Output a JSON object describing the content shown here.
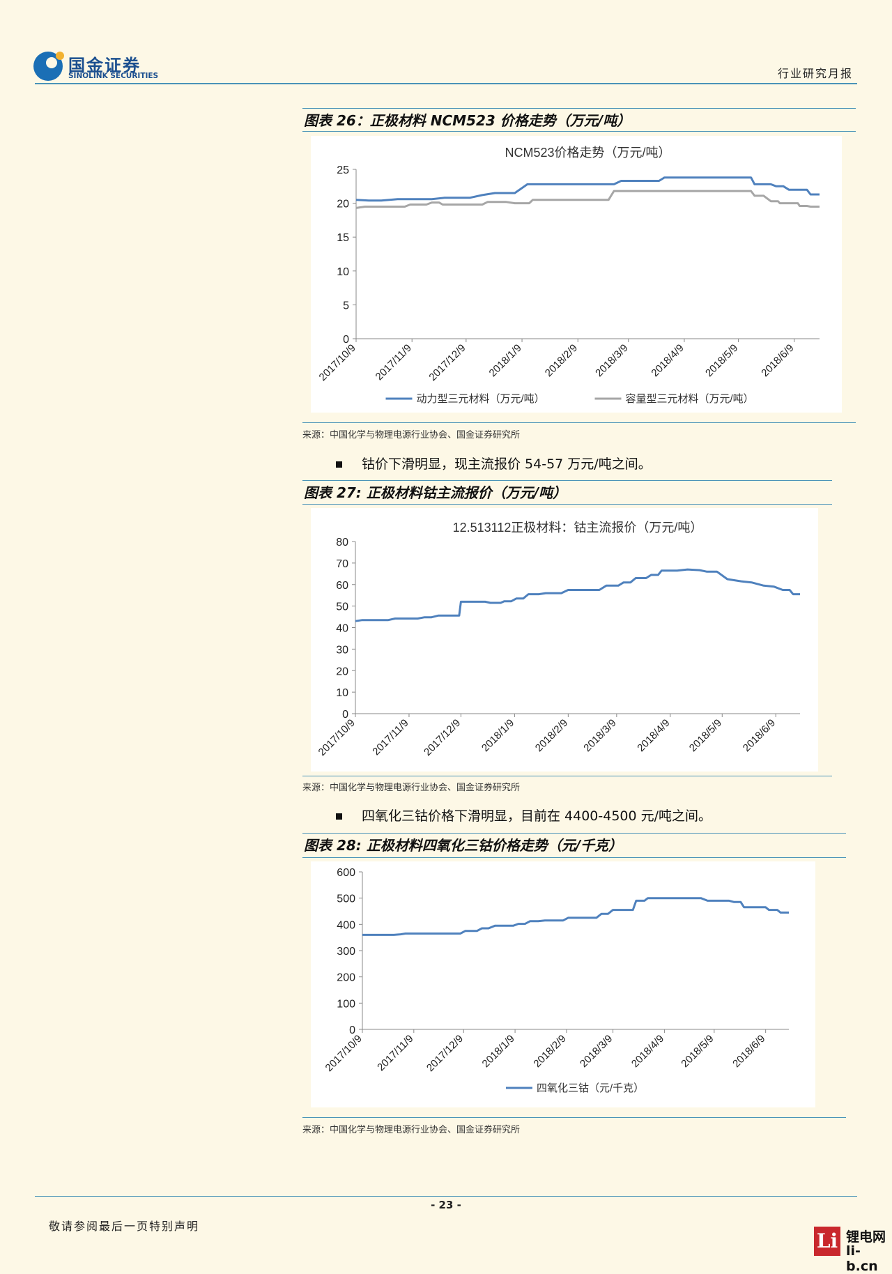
{
  "header": {
    "logo_cn": "国金证券",
    "logo_en": "SINOLINK SECURITIES",
    "report_type": "行业研究月报"
  },
  "figures": [
    {
      "caption": "图表 26：正极材料 NCM523 价格走势（万元/吨）",
      "source": "来源：中国化学与物理电源行业协会、国金证券研究所"
    },
    {
      "caption": "图表 27: 正极材料钴主流报价（万元/吨）",
      "source": "来源：中国化学与物理电源行业协会、国金证券研究所"
    },
    {
      "caption": "图表 28: 正极材料四氧化三钴价格走势（元/千克）",
      "source": "来源：中国化学与物理电源行业协会、国金证券研究所"
    }
  ],
  "bullets": [
    "钴价下滑明显，现主流报价 54-57 万元/吨之间。",
    "四氧化三钴价格下滑明显，目前在 4400-4500 元/吨之间。"
  ],
  "footer": {
    "page_number": "- 23 -",
    "note": "敬请参阅最后一页特别声明",
    "watermark_cn": "锂电网",
    "watermark_en": "li-b.cn",
    "watermark_logo": "Li"
  },
  "colors": {
    "series_blue": "#4f81bd",
    "series_gray": "#a6a6a6",
    "rule_blue": "#4a93b8"
  },
  "chart_data": [
    {
      "type": "line",
      "title": "NCM523价格走势（万元/吨）",
      "xlabel": "",
      "ylabel": "",
      "x_ticks": [
        "2017/10/9",
        "2017/11/9",
        "2017/12/9",
        "2018/1/9",
        "2018/2/9",
        "2018/3/9",
        "2018/4/9",
        "2018/5/9",
        "2018/6/9"
      ],
      "x_range": [
        "2017/10/9",
        "2018/6/23"
      ],
      "ylim": [
        0,
        25
      ],
      "yticks": [
        0,
        5,
        10,
        15,
        20,
        25
      ],
      "grid": false,
      "legend_position": "bottom",
      "series": [
        {
          "name": "动力型三元材料（万元/吨）",
          "points": [
            [
              "2017/10/9",
              20.5
            ],
            [
              "2017/10/16",
              20.4
            ],
            [
              "2017/10/23",
              20.4
            ],
            [
              "2017/11/1",
              20.6
            ],
            [
              "2017/11/20",
              20.6
            ],
            [
              "2017/11/27",
              20.8
            ],
            [
              "2017/12/11",
              20.8
            ],
            [
              "2017/12/18",
              21.2
            ],
            [
              "2017/12/25",
              21.5
            ],
            [
              "2018/1/5",
              21.5
            ],
            [
              "2018/1/12",
              22.8
            ],
            [
              "2018/3/1",
              22.8
            ],
            [
              "2018/3/5",
              23.3
            ],
            [
              "2018/3/26",
              23.3
            ],
            [
              "2018/3/29",
              23.8
            ],
            [
              "2018/5/16",
              23.8
            ],
            [
              "2018/5/18",
              22.8
            ],
            [
              "2018/5/27",
              22.8
            ],
            [
              "2018/5/30",
              22.5
            ],
            [
              "2018/6/3",
              22.5
            ],
            [
              "2018/6/6",
              22.0
            ],
            [
              "2018/6/16",
              22.0
            ],
            [
              "2018/6/18",
              21.3
            ],
            [
              "2018/6/23",
              21.3
            ]
          ]
        },
        {
          "name": "容量型三元材料（万元/吨）",
          "points": [
            [
              "2017/10/9",
              19.3
            ],
            [
              "2017/10/14",
              19.5
            ],
            [
              "2017/11/5",
              19.5
            ],
            [
              "2017/11/8",
              19.8
            ],
            [
              "2017/11/17",
              19.8
            ],
            [
              "2017/11/20",
              20.1
            ],
            [
              "2017/11/24",
              20.1
            ],
            [
              "2017/11/26",
              19.8
            ],
            [
              "2017/12/18",
              19.8
            ],
            [
              "2017/12/21",
              20.2
            ],
            [
              "2017/12/31",
              20.2
            ],
            [
              "2018/1/5",
              20.0
            ],
            [
              "2018/1/13",
              20.0
            ],
            [
              "2018/1/15",
              20.5
            ],
            [
              "2018/2/26",
              20.5
            ],
            [
              "2018/3/1",
              21.8
            ],
            [
              "2018/5/16",
              21.8
            ],
            [
              "2018/5/18",
              21.1
            ],
            [
              "2018/5/23",
              21.1
            ],
            [
              "2018/5/27",
              20.3
            ],
            [
              "2018/5/31",
              20.3
            ],
            [
              "2018/6/1",
              20.0
            ],
            [
              "2018/6/11",
              20.0
            ],
            [
              "2018/6/12",
              19.6
            ],
            [
              "2018/6/16",
              19.6
            ],
            [
              "2018/6/18",
              19.5
            ],
            [
              "2018/6/23",
              19.5
            ]
          ]
        }
      ]
    },
    {
      "type": "line",
      "title": "12.513112正极材料：钴主流报价（万元/吨）",
      "xlabel": "",
      "ylabel": "",
      "x_ticks": [
        "2017/10/9",
        "2017/11/9",
        "2017/12/9",
        "2018/1/9",
        "2018/2/9",
        "2018/3/9",
        "2018/4/9",
        "2018/5/9",
        "2018/6/9"
      ],
      "x_range": [
        "2017/10/9",
        "2018/6/23"
      ],
      "ylim": [
        0,
        80
      ],
      "yticks": [
        0,
        10,
        20,
        30,
        40,
        50,
        60,
        70,
        80
      ],
      "grid": false,
      "legend_position": "none",
      "series": [
        {
          "name": "",
          "points": [
            [
              "2017/10/9",
              43
            ],
            [
              "2017/10/13",
              43.5
            ],
            [
              "2017/10/28",
              43.5
            ],
            [
              "2017/11/1",
              44.2
            ],
            [
              "2017/11/14",
              44.2
            ],
            [
              "2017/11/18",
              44.8
            ],
            [
              "2017/11/22",
              44.8
            ],
            [
              "2017/11/26",
              45.6
            ],
            [
              "2017/12/8",
              45.6
            ],
            [
              "2017/12/9",
              52
            ],
            [
              "2017/12/23",
              52
            ],
            [
              "2017/12/26",
              51.5
            ],
            [
              "2018/1/1",
              51.5
            ],
            [
              "2018/1/3",
              52.2
            ],
            [
              "2018/1/7",
              52.2
            ],
            [
              "2018/1/10",
              53.5
            ],
            [
              "2018/1/14",
              53.5
            ],
            [
              "2018/1/17",
              55.5
            ],
            [
              "2018/1/23",
              55.5
            ],
            [
              "2018/1/27",
              56
            ],
            [
              "2018/2/5",
              56
            ],
            [
              "2018/2/9",
              57.5
            ],
            [
              "2018/2/27",
              57.5
            ],
            [
              "2018/3/3",
              59.5
            ],
            [
              "2018/3/10",
              59.5
            ],
            [
              "2018/3/13",
              61
            ],
            [
              "2018/3/17",
              61
            ],
            [
              "2018/3/20",
              63
            ],
            [
              "2018/3/26",
              63
            ],
            [
              "2018/3/29",
              64.5
            ],
            [
              "2018/4/2",
              64.5
            ],
            [
              "2018/4/4",
              66.5
            ],
            [
              "2018/4/13",
              66.5
            ],
            [
              "2018/4/19",
              67
            ],
            [
              "2018/4/26",
              66.7
            ],
            [
              "2018/4/30",
              66
            ],
            [
              "2018/5/6",
              66
            ],
            [
              "2018/5/12",
              62.5
            ],
            [
              "2018/5/20",
              61.5
            ],
            [
              "2018/5/26",
              61
            ],
            [
              "2018/6/2",
              59.5
            ],
            [
              "2018/6/8",
              59
            ],
            [
              "2018/6/13",
              57.5
            ],
            [
              "2018/6/17",
              57.5
            ],
            [
              "2018/6/19",
              55.5
            ],
            [
              "2018/6/23",
              55.5
            ]
          ]
        }
      ]
    },
    {
      "type": "line",
      "title": "",
      "xlabel": "",
      "ylabel": "",
      "x_ticks": [
        "2017/10/9",
        "2017/11/9",
        "2017/12/9",
        "2018/1/9",
        "2018/2/9",
        "2018/3/9",
        "2018/4/9",
        "2018/5/9",
        "2018/6/9"
      ],
      "x_range": [
        "2017/10/9",
        "2018/6/23"
      ],
      "ylim": [
        0,
        600
      ],
      "yticks": [
        0,
        100,
        200,
        300,
        400,
        500,
        600
      ],
      "grid": false,
      "legend_position": "bottom",
      "series": [
        {
          "name": "四氧化三钴（元/千克）",
          "points": [
            [
              "2017/10/9",
              360
            ],
            [
              "2017/10/28",
              360
            ],
            [
              "2017/11/1",
              362
            ],
            [
              "2017/11/4",
              365
            ],
            [
              "2017/12/7",
              365
            ],
            [
              "2017/12/10",
              375
            ],
            [
              "2017/12/17",
              375
            ],
            [
              "2017/12/20",
              385
            ],
            [
              "2017/12/24",
              385
            ],
            [
              "2017/12/28",
              395
            ],
            [
              "2018/1/8",
              395
            ],
            [
              "2018/1/11",
              402
            ],
            [
              "2018/1/15",
              402
            ],
            [
              "2018/1/18",
              412
            ],
            [
              "2018/1/23",
              412
            ],
            [
              "2018/1/27",
              415
            ],
            [
              "2018/2/7",
              415
            ],
            [
              "2018/2/10",
              425
            ],
            [
              "2018/2/27",
              425
            ],
            [
              "2018/3/2",
              440
            ],
            [
              "2018/3/6",
              440
            ],
            [
              "2018/3/9",
              455
            ],
            [
              "2018/3/21",
              455
            ],
            [
              "2018/3/23",
              490
            ],
            [
              "2018/3/28",
              490
            ],
            [
              "2018/3/30",
              500
            ],
            [
              "2018/5/1",
              500
            ],
            [
              "2018/5/5",
              490
            ],
            [
              "2018/5/18",
              490
            ],
            [
              "2018/5/21",
              485
            ],
            [
              "2018/5/25",
              485
            ],
            [
              "2018/5/27",
              465
            ],
            [
              "2018/6/9",
              465
            ],
            [
              "2018/6/11",
              455
            ],
            [
              "2018/6/16",
              455
            ],
            [
              "2018/6/18",
              445
            ],
            [
              "2018/6/23",
              445
            ]
          ]
        }
      ]
    }
  ]
}
